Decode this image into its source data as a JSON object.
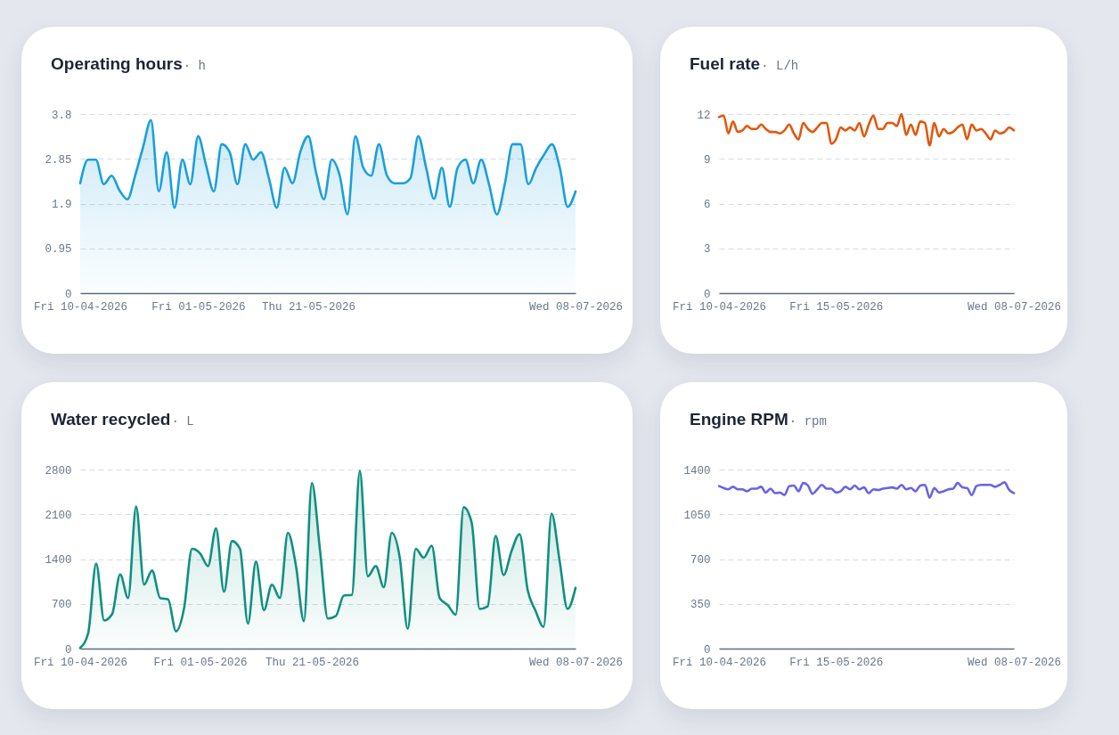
{
  "chart_data": [
    {
      "type": "area",
      "title": "Operating hours",
      "ylabel": "· h",
      "color": "#1a9fdc",
      "ylim": [
        0,
        3.8
      ],
      "yticks": [
        0,
        0.95,
        1.9,
        2.85,
        3.8
      ],
      "grid": "y",
      "categories": [
        "Fri 10-04-2026",
        null,
        null,
        null,
        null,
        null,
        null,
        null,
        null,
        null,
        null,
        null,
        null,
        null,
        null,
        "Fri 01-05-2026",
        null,
        null,
        null,
        null,
        null,
        null,
        null,
        null,
        null,
        null,
        null,
        null,
        null,
        "Thu 21-05-2026",
        null,
        null,
        null,
        null,
        null,
        null,
        null,
        null,
        null,
        null,
        null,
        null,
        null,
        null,
        null,
        null,
        null,
        null,
        null,
        null,
        null,
        null,
        null,
        null,
        null,
        null,
        null,
        null,
        null,
        null,
        null,
        null,
        null,
        "Wed 08-07-2026"
      ],
      "values": [
        2.33,
        2.83,
        2.83,
        2.31,
        2.49,
        2.18,
        1.99,
        2.5,
        3.1,
        3.67,
        2.16,
        2.99,
        1.81,
        2.83,
        2.31,
        3.33,
        2.72,
        2.16,
        3.16,
        3.0,
        2.31,
        3.16,
        2.83,
        2.99,
        2.44,
        1.81,
        2.66,
        2.33,
        3.0,
        3.33,
        2.56,
        1.99,
        2.83,
        2.5,
        1.67,
        3.33,
        2.66,
        2.49,
        3.16,
        2.5,
        2.33,
        2.33,
        2.44,
        3.33,
        2.66,
        2.0,
        2.66,
        1.83,
        2.66,
        2.83,
        2.33,
        2.83,
        2.31,
        1.67,
        2.31,
        3.16,
        3.16,
        2.31,
        2.66,
        2.94,
        3.16,
        2.66,
        1.83,
        2.16
      ]
    },
    {
      "type": "line",
      "title": "Fuel rate",
      "ylabel": "· L/h",
      "color": "#e2570e",
      "ylim": [
        0,
        12
      ],
      "yticks": [
        0,
        3,
        6,
        9,
        12
      ],
      "grid": "y",
      "categories": [
        "Fri 10-04-2026",
        null,
        null,
        null,
        null,
        null,
        null,
        null,
        null,
        null,
        null,
        null,
        null,
        null,
        null,
        null,
        null,
        null,
        null,
        null,
        null,
        null,
        null,
        null,
        null,
        "Fri 15-05-2026",
        null,
        null,
        null,
        null,
        null,
        null,
        null,
        null,
        null,
        null,
        null,
        null,
        null,
        null,
        null,
        null,
        null,
        null,
        null,
        null,
        null,
        null,
        null,
        null,
        null,
        null,
        null,
        null,
        null,
        null,
        null,
        null,
        null,
        null,
        null,
        null,
        null,
        "Wed 08-07-2026"
      ],
      "values": [
        11.8,
        11.9,
        10.7,
        11.5,
        10.8,
        10.9,
        11.2,
        11.0,
        11.0,
        11.3,
        11.0,
        10.8,
        10.8,
        10.7,
        10.9,
        11.3,
        10.7,
        10.3,
        11.4,
        11.0,
        10.8,
        11.1,
        11.4,
        11.4,
        10.0,
        10.3,
        11.1,
        10.9,
        11.1,
        10.9,
        11.4,
        10.5,
        11.3,
        11.9,
        11.0,
        11.0,
        11.4,
        11.4,
        11.2,
        12.0,
        10.6,
        11.3,
        10.6,
        11.5,
        11.4,
        9.9,
        11.4,
        10.5,
        11.0,
        10.7,
        10.8,
        11.1,
        11.3,
        10.3,
        11.3,
        10.9,
        11.0,
        10.7,
        10.3,
        10.9,
        10.7,
        10.8,
        11.1,
        10.9
      ]
    },
    {
      "type": "area",
      "title": "Water recycled",
      "ylabel": "· L",
      "color": "#0f9080",
      "ylim": [
        0,
        2800
      ],
      "yticks": [
        0,
        700,
        1400,
        2100,
        2800
      ],
      "grid": "y",
      "categories": [
        "Fri 10-04-2026",
        null,
        null,
        null,
        null,
        null,
        null,
        null,
        null,
        null,
        null,
        null,
        null,
        null,
        null,
        "Fri 01-05-2026",
        null,
        null,
        null,
        null,
        null,
        null,
        null,
        null,
        null,
        null,
        null,
        null,
        null,
        "Thu 21-05-2026",
        null,
        null,
        null,
        null,
        null,
        null,
        null,
        null,
        null,
        null,
        null,
        null,
        null,
        null,
        null,
        null,
        null,
        null,
        null,
        null,
        null,
        null,
        null,
        null,
        null,
        null,
        null,
        null,
        null,
        null,
        null,
        null,
        "Wed 08-07-2026"
      ],
      "values": [
        10,
        240,
        1330,
        440,
        540,
        1160,
        790,
        2220,
        1000,
        1220,
        790,
        770,
        270,
        630,
        1560,
        1490,
        1290,
        1880,
        890,
        1680,
        1560,
        390,
        1360,
        600,
        1000,
        790,
        1810,
        1300,
        430,
        2590,
        1560,
        470,
        510,
        830,
        840,
        2780,
        1130,
        1290,
        960,
        1810,
        1420,
        310,
        1560,
        1420,
        1610,
        790,
        680,
        530,
        2210,
        1970,
        620,
        660,
        1760,
        1150,
        1530,
        1790,
        920,
        590,
        340,
        2110,
        1380,
        620,
        950
      ]
    },
    {
      "type": "line",
      "title": "Engine RPM",
      "ylabel": "· rpm",
      "color": "#6764e4",
      "ylim": [
        0,
        1400
      ],
      "yticks": [
        0,
        350,
        700,
        1050,
        1400
      ],
      "grid": "y",
      "categories": [
        "Fri 10-04-2026",
        null,
        null,
        null,
        null,
        null,
        null,
        null,
        null,
        null,
        null,
        null,
        null,
        null,
        null,
        null,
        null,
        null,
        null,
        null,
        null,
        null,
        null,
        null,
        null,
        "Fri 15-05-2026",
        null,
        null,
        null,
        null,
        null,
        null,
        null,
        null,
        null,
        null,
        null,
        null,
        null,
        null,
        null,
        null,
        null,
        null,
        null,
        null,
        null,
        null,
        null,
        null,
        null,
        null,
        null,
        null,
        null,
        null,
        null,
        null,
        null,
        null,
        null,
        null,
        null,
        "Wed 08-07-2026"
      ],
      "values": [
        1270,
        1255,
        1245,
        1265,
        1245,
        1245,
        1230,
        1250,
        1250,
        1265,
        1220,
        1250,
        1215,
        1220,
        1200,
        1270,
        1275,
        1230,
        1295,
        1275,
        1210,
        1245,
        1280,
        1250,
        1250,
        1220,
        1230,
        1265,
        1245,
        1275,
        1245,
        1260,
        1215,
        1245,
        1240,
        1250,
        1255,
        1260,
        1250,
        1280,
        1245,
        1255,
        1230,
        1275,
        1280,
        1180,
        1255,
        1220,
        1230,
        1245,
        1250,
        1295,
        1260,
        1255,
        1200,
        1270,
        1280,
        1280,
        1280,
        1265,
        1280,
        1300,
        1240,
        1215
      ]
    }
  ]
}
